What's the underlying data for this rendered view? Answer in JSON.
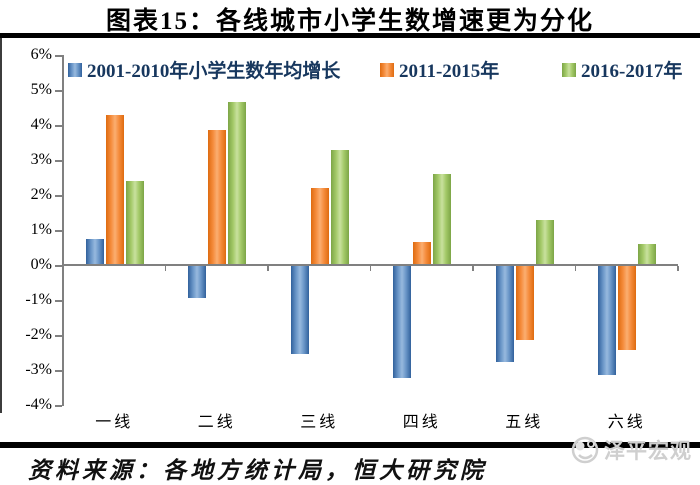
{
  "chart_data": {
    "type": "bar",
    "title": "图表15：各线城市小学生数增速更为分化",
    "categories": [
      "一线",
      "二线",
      "三线",
      "四线",
      "五线",
      "六线"
    ],
    "series": [
      {
        "name": "2001-2010年小学生数年均增长",
        "color_dark": "#31619C",
        "color_mid": "#6A96C8",
        "color_light": "#97B9DE",
        "values": [
          0.75,
          -0.9,
          -2.5,
          -3.2,
          -2.75,
          -3.1
        ]
      },
      {
        "name": "2011-2015年",
        "color_dark": "#DE6B10",
        "color_mid": "#F58C3C",
        "color_light": "#FBAE71",
        "values": [
          4.3,
          3.85,
          2.2,
          0.65,
          -2.1,
          -2.4
        ]
      },
      {
        "name": "2016-2017年",
        "color_dark": "#7CA546",
        "color_mid": "#A3C968",
        "color_light": "#C9E19E",
        "values": [
          2.4,
          4.65,
          3.3,
          2.6,
          1.3,
          0.6
        ]
      }
    ],
    "ylim": [
      -4,
      6
    ],
    "yticks": [
      "6%",
      "5%",
      "4%",
      "3%",
      "2%",
      "1%",
      "0%",
      "-1%",
      "-2%",
      "-3%",
      "-4%"
    ],
    "xlabel": "",
    "ylabel": "",
    "grid": false,
    "legend_position": "top",
    "axis_color": "#808080"
  },
  "footer": {
    "source": "资料来源：各地方统计局，恒大研究院",
    "watermark": "泽平宏观"
  }
}
